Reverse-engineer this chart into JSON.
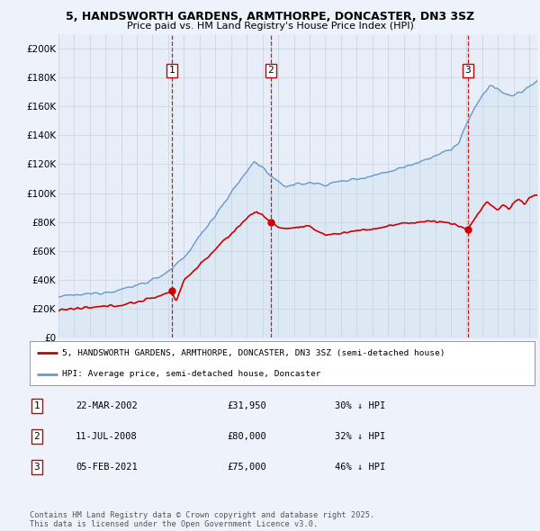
{
  "title_line1": "5, HANDSWORTH GARDENS, ARMTHORPE, DONCASTER, DN3 3SZ",
  "title_line2": "Price paid vs. HM Land Registry's House Price Index (HPI)",
  "xlim_start": 1995.0,
  "xlim_end": 2025.5,
  "ylim_min": 0,
  "ylim_max": 210000,
  "yticks": [
    0,
    20000,
    40000,
    60000,
    80000,
    100000,
    120000,
    140000,
    160000,
    180000,
    200000
  ],
  "ytick_labels": [
    "£0",
    "£20K",
    "£40K",
    "£60K",
    "£80K",
    "£100K",
    "£120K",
    "£140K",
    "£160K",
    "£180K",
    "£200K"
  ],
  "sale_dates": [
    2002.22,
    2008.53,
    2021.09
  ],
  "sale_prices": [
    31950,
    80000,
    75000
  ],
  "sale_labels": [
    "1",
    "2",
    "3"
  ],
  "vline_color": "#cc0000",
  "sale_marker_color": "#cc0000",
  "hpi_color": "#6699cc",
  "hpi_fill_color": "#dde8f5",
  "property_color": "#cc0000",
  "legend_label_property": "5, HANDSWORTH GARDENS, ARMTHORPE, DONCASTER, DN3 3SZ (semi-detached house)",
  "legend_label_hpi": "HPI: Average price, semi-detached house, Doncaster",
  "table_entries": [
    {
      "label": "1",
      "date": "22-MAR-2002",
      "price": "£31,950",
      "pct": "30% ↓ HPI"
    },
    {
      "label": "2",
      "date": "11-JUL-2008",
      "price": "£80,000",
      "pct": "32% ↓ HPI"
    },
    {
      "label": "3",
      "date": "05-FEB-2021",
      "price": "£75,000",
      "pct": "46% ↓ HPI"
    }
  ],
  "footnote": "Contains HM Land Registry data © Crown copyright and database right 2025.\nThis data is licensed under the Open Government Licence v3.0.",
  "bg_color": "#eef2fa",
  "plot_bg_color": "#e8eef8",
  "grid_color": "#c8d0e0"
}
